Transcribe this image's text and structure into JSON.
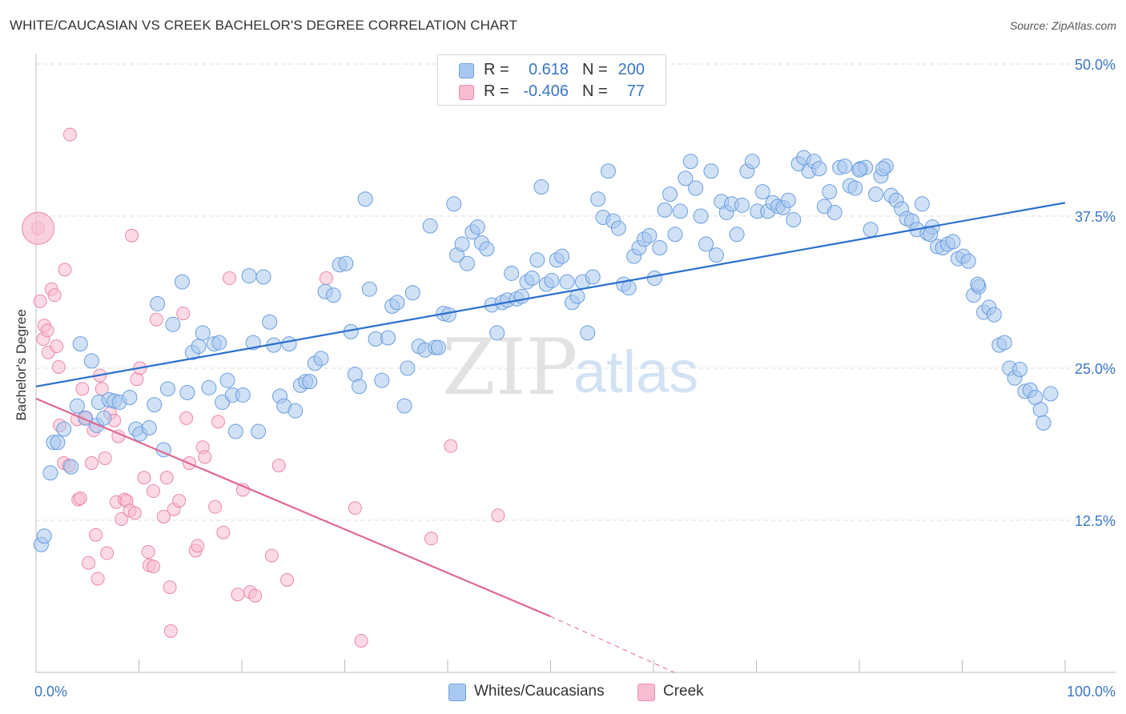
{
  "header": {
    "title": "WHITE/CAUCASIAN VS CREEK BACHELOR'S DEGREE CORRELATION CHART",
    "source": "Source: ZipAtlas.com"
  },
  "legend_top": {
    "rows": [
      {
        "r_label": "R =",
        "r_value": "0.618",
        "n_label": "N =",
        "n_value": "200",
        "color": "#a9c8ef",
        "border": "#6fa2e0"
      },
      {
        "r_label": "R =",
        "r_value": "-0.406",
        "n_label": "N =",
        "n_value": "77",
        "color": "#f7bcd0",
        "border": "#ec8fae"
      }
    ]
  },
  "legend_bottom": {
    "items": [
      {
        "label": "Whites/Caucasians",
        "color": "#a9c8ef",
        "border": "#6fa2e0"
      },
      {
        "label": "Creek",
        "color": "#f7bcd0",
        "border": "#ec8fae"
      }
    ]
  },
  "watermark": {
    "zip": "ZIP",
    "atlas": "atlas"
  },
  "colors": {
    "blue_fill": "#a9c8ef",
    "blue_stroke": "#6a9ede",
    "blue_line": "#2a6fcf",
    "pink_fill": "#f7bcd0",
    "pink_stroke": "#e889a9",
    "pink_line": "#e06892",
    "tick_label": "#3a76c4",
    "grid": "#dddddd"
  },
  "chart_data": {
    "type": "scatter",
    "title": "WHITE/CAUCASIAN VS CREEK BACHELOR'S DEGREE CORRELATION CHART",
    "xlabel": "",
    "ylabel": "Bachelor's Degree",
    "xlim": [
      0,
      100
    ],
    "ylim": [
      0,
      50
    ],
    "x_tick_labels": [
      "0.0%",
      "100.0%"
    ],
    "y_ticks": [
      12.5,
      25.0,
      37.5,
      50.0
    ],
    "y_tick_labels": [
      "12.5%",
      "25.0%",
      "37.5%",
      "50.0%"
    ],
    "grid": true,
    "legend_position": "top-center",
    "series": [
      {
        "name": "Whites/Caucasians",
        "color": "#a9c8ef",
        "r": 0.618,
        "n": 200,
        "trend": {
          "x": [
            0,
            100
          ],
          "y": [
            23.5,
            38.6
          ]
        },
        "points": [
          [
            0.5,
            10.5
          ],
          [
            0.8,
            11.2
          ],
          [
            1.4,
            16.4
          ],
          [
            1.7,
            18.9
          ],
          [
            2.1,
            18.9
          ],
          [
            2.7,
            20.0
          ],
          [
            3.4,
            16.9
          ],
          [
            4.0,
            21.9
          ],
          [
            4.3,
            27.0
          ],
          [
            4.8,
            20.9
          ],
          [
            5.4,
            25.6
          ],
          [
            5.9,
            20.3
          ],
          [
            6.1,
            22.2
          ],
          [
            6.6,
            20.9
          ],
          [
            7.1,
            22.4
          ],
          [
            7.6,
            22.3
          ],
          [
            8.1,
            22.2
          ],
          [
            9.1,
            22.6
          ],
          [
            9.7,
            20.0
          ],
          [
            10.1,
            19.6
          ],
          [
            11.0,
            20.1
          ],
          [
            11.5,
            22.0
          ],
          [
            11.8,
            30.3
          ],
          [
            12.4,
            18.3
          ],
          [
            12.8,
            23.3
          ],
          [
            13.3,
            28.6
          ],
          [
            14.2,
            32.1
          ],
          [
            14.7,
            23.0
          ],
          [
            15.2,
            26.3
          ],
          [
            15.8,
            26.8
          ],
          [
            16.2,
            27.9
          ],
          [
            16.8,
            23.4
          ],
          [
            17.3,
            27.0
          ],
          [
            17.8,
            27.1
          ],
          [
            18.1,
            22.2
          ],
          [
            18.6,
            24.0
          ],
          [
            19.1,
            22.8
          ],
          [
            19.4,
            19.8
          ],
          [
            20.1,
            22.8
          ],
          [
            20.7,
            32.6
          ],
          [
            21.1,
            27.1
          ],
          [
            21.6,
            19.8
          ],
          [
            22.1,
            32.5
          ],
          [
            22.7,
            28.8
          ],
          [
            23.1,
            26.9
          ],
          [
            23.7,
            22.7
          ],
          [
            24.1,
            21.9
          ],
          [
            24.6,
            27.0
          ],
          [
            25.2,
            21.5
          ],
          [
            25.7,
            23.6
          ],
          [
            26.2,
            23.9
          ],
          [
            26.6,
            23.9
          ],
          [
            27.1,
            25.4
          ],
          [
            27.7,
            25.8
          ],
          [
            28.1,
            31.3
          ],
          [
            28.9,
            31.0
          ],
          [
            29.5,
            33.5
          ],
          [
            30.1,
            33.6
          ],
          [
            30.6,
            28.0
          ],
          [
            31.0,
            24.5
          ],
          [
            31.4,
            23.5
          ],
          [
            32.0,
            38.9
          ],
          [
            32.4,
            31.5
          ],
          [
            33.0,
            27.4
          ],
          [
            33.6,
            24.0
          ],
          [
            34.2,
            27.5
          ],
          [
            34.6,
            30.1
          ],
          [
            35.1,
            30.4
          ],
          [
            35.8,
            21.9
          ],
          [
            36.1,
            25.0
          ],
          [
            36.6,
            31.2
          ],
          [
            37.2,
            26.8
          ],
          [
            37.8,
            26.5
          ],
          [
            38.3,
            36.7
          ],
          [
            38.8,
            26.7
          ],
          [
            39.1,
            26.7
          ],
          [
            39.6,
            29.5
          ],
          [
            40.1,
            29.4
          ],
          [
            40.6,
            38.5
          ],
          [
            40.9,
            34.3
          ],
          [
            41.4,
            35.2
          ],
          [
            41.9,
            33.6
          ],
          [
            42.4,
            36.2
          ],
          [
            42.9,
            36.6
          ],
          [
            43.3,
            35.3
          ],
          [
            43.8,
            34.8
          ],
          [
            44.3,
            30.2
          ],
          [
            44.8,
            27.9
          ],
          [
            45.3,
            30.4
          ],
          [
            45.8,
            30.6
          ],
          [
            46.2,
            32.8
          ],
          [
            46.7,
            30.7
          ],
          [
            47.2,
            30.9
          ],
          [
            47.7,
            32.1
          ],
          [
            48.2,
            32.4
          ],
          [
            48.7,
            33.9
          ],
          [
            49.1,
            39.9
          ],
          [
            49.6,
            31.9
          ],
          [
            50.1,
            32.2
          ],
          [
            50.6,
            33.9
          ],
          [
            51.1,
            34.2
          ],
          [
            51.6,
            32.1
          ],
          [
            52.1,
            30.4
          ],
          [
            52.6,
            30.9
          ],
          [
            53.1,
            32.1
          ],
          [
            53.6,
            27.9
          ],
          [
            54.1,
            32.5
          ],
          [
            54.6,
            38.9
          ],
          [
            55.1,
            37.4
          ],
          [
            55.6,
            41.2
          ],
          [
            56.1,
            37.1
          ],
          [
            56.6,
            36.5
          ],
          [
            57.1,
            31.9
          ],
          [
            57.6,
            31.6
          ],
          [
            58.1,
            34.2
          ],
          [
            58.6,
            34.9
          ],
          [
            59.1,
            35.6
          ],
          [
            59.6,
            35.9
          ],
          [
            60.1,
            32.4
          ],
          [
            60.6,
            34.9
          ],
          [
            61.1,
            38.0
          ],
          [
            61.6,
            39.3
          ],
          [
            62.1,
            36.0
          ],
          [
            62.6,
            37.9
          ],
          [
            63.1,
            40.6
          ],
          [
            63.6,
            42.0
          ],
          [
            64.1,
            39.8
          ],
          [
            64.6,
            37.5
          ],
          [
            65.1,
            35.2
          ],
          [
            65.6,
            41.2
          ],
          [
            66.1,
            34.3
          ],
          [
            66.6,
            38.7
          ],
          [
            67.1,
            37.8
          ],
          [
            67.6,
            38.5
          ],
          [
            68.1,
            36.0
          ],
          [
            68.6,
            38.4
          ],
          [
            69.1,
            41.2
          ],
          [
            69.6,
            42.0
          ],
          [
            70.1,
            37.9
          ],
          [
            70.6,
            39.5
          ],
          [
            71.1,
            37.9
          ],
          [
            71.6,
            38.6
          ],
          [
            72.1,
            38.3
          ],
          [
            72.6,
            38.2
          ],
          [
            73.1,
            38.8
          ],
          [
            73.6,
            37.2
          ],
          [
            74.1,
            41.8
          ],
          [
            74.6,
            42.3
          ],
          [
            75.1,
            41.2
          ],
          [
            75.6,
            42.0
          ],
          [
            76.1,
            41.4
          ],
          [
            76.6,
            38.3
          ],
          [
            77.1,
            39.5
          ],
          [
            77.6,
            37.8
          ],
          [
            78.1,
            41.5
          ],
          [
            78.6,
            41.6
          ],
          [
            79.1,
            40.0
          ],
          [
            79.6,
            39.8
          ],
          [
            80.1,
            41.4
          ],
          [
            80.6,
            41.5
          ],
          [
            81.1,
            36.4
          ],
          [
            81.6,
            39.3
          ],
          [
            82.1,
            40.8
          ],
          [
            82.6,
            41.6
          ],
          [
            83.1,
            39.2
          ],
          [
            83.6,
            38.8
          ],
          [
            84.1,
            38.1
          ],
          [
            84.6,
            37.3
          ],
          [
            85.1,
            37.1
          ],
          [
            85.6,
            36.4
          ],
          [
            86.1,
            38.5
          ],
          [
            86.6,
            36.1
          ],
          [
            87.1,
            36.6
          ],
          [
            87.6,
            35.0
          ],
          [
            88.1,
            34.9
          ],
          [
            88.6,
            35.2
          ],
          [
            89.1,
            35.4
          ],
          [
            89.6,
            34.0
          ],
          [
            90.1,
            34.2
          ],
          [
            90.6,
            33.8
          ],
          [
            91.1,
            31.0
          ],
          [
            91.6,
            31.7
          ],
          [
            92.1,
            29.6
          ],
          [
            92.6,
            30.0
          ],
          [
            93.1,
            29.4
          ],
          [
            93.6,
            26.9
          ],
          [
            94.1,
            27.1
          ],
          [
            94.6,
            25.0
          ],
          [
            95.1,
            24.2
          ],
          [
            95.6,
            24.9
          ],
          [
            96.1,
            23.1
          ],
          [
            96.6,
            23.2
          ],
          [
            97.1,
            22.6
          ],
          [
            97.6,
            21.6
          ],
          [
            97.9,
            20.5
          ],
          [
            98.6,
            22.9
          ],
          [
            91.5,
            31.9
          ],
          [
            86.9,
            36.0
          ],
          [
            82.3,
            41.4
          ],
          [
            80.0,
            41.3
          ]
        ]
      },
      {
        "name": "Creek",
        "color": "#f7bcd0",
        "r": -0.406,
        "n": 77,
        "trend": {
          "x": [
            0,
            50
          ],
          "y": [
            22.5,
            4.6
          ]
        },
        "trend_dashed": {
          "x": [
            50,
            62
          ],
          "y": [
            4.6,
            0.0
          ]
        },
        "points": [
          [
            0.4,
            30.5
          ],
          [
            0.7,
            27.4
          ],
          [
            0.8,
            28.5
          ],
          [
            1.1,
            28.1
          ],
          [
            1.2,
            26.3
          ],
          [
            1.5,
            31.5
          ],
          [
            1.8,
            31.0
          ],
          [
            2.0,
            26.8
          ],
          [
            2.2,
            25.1
          ],
          [
            2.3,
            20.3
          ],
          [
            2.7,
            17.2
          ],
          [
            2.8,
            33.1
          ],
          [
            3.2,
            17.0
          ],
          [
            3.3,
            44.2
          ],
          [
            4.0,
            20.8
          ],
          [
            4.1,
            14.2
          ],
          [
            4.3,
            14.3
          ],
          [
            4.5,
            23.3
          ],
          [
            4.8,
            20.9
          ],
          [
            5.1,
            9.0
          ],
          [
            5.4,
            17.2
          ],
          [
            5.6,
            19.9
          ],
          [
            5.8,
            11.3
          ],
          [
            6.0,
            7.7
          ],
          [
            6.2,
            24.4
          ],
          [
            6.4,
            23.3
          ],
          [
            6.7,
            17.6
          ],
          [
            6.9,
            9.8
          ],
          [
            7.2,
            21.3
          ],
          [
            7.6,
            20.7
          ],
          [
            7.8,
            14.0
          ],
          [
            8.0,
            19.4
          ],
          [
            8.3,
            12.6
          ],
          [
            8.6,
            14.2
          ],
          [
            8.8,
            14.1
          ],
          [
            9.1,
            13.3
          ],
          [
            9.3,
            35.9
          ],
          [
            9.6,
            13.1
          ],
          [
            9.8,
            24.1
          ],
          [
            10.1,
            25.0
          ],
          [
            10.5,
            16.0
          ],
          [
            10.9,
            9.9
          ],
          [
            11.0,
            8.8
          ],
          [
            11.4,
            14.9
          ],
          [
            11.7,
            29.0
          ],
          [
            12.4,
            12.8
          ],
          [
            12.7,
            16.0
          ],
          [
            13.0,
            7.0
          ],
          [
            13.4,
            13.4
          ],
          [
            13.9,
            14.1
          ],
          [
            14.3,
            29.5
          ],
          [
            14.6,
            20.9
          ],
          [
            14.9,
            17.2
          ],
          [
            15.5,
            10.0
          ],
          [
            15.7,
            10.4
          ],
          [
            16.2,
            18.5
          ],
          [
            16.4,
            17.7
          ],
          [
            17.4,
            13.6
          ],
          [
            17.7,
            20.6
          ],
          [
            18.2,
            11.5
          ],
          [
            18.8,
            32.4
          ],
          [
            19.6,
            6.4
          ],
          [
            20.1,
            15.0
          ],
          [
            20.8,
            6.6
          ],
          [
            21.3,
            6.3
          ],
          [
            22.9,
            9.6
          ],
          [
            23.6,
            17.0
          ],
          [
            24.4,
            7.6
          ],
          [
            28.2,
            32.4
          ],
          [
            31.0,
            13.5
          ],
          [
            31.6,
            2.6
          ],
          [
            38.4,
            11.0
          ],
          [
            40.3,
            18.6
          ],
          [
            44.9,
            12.9
          ],
          [
            0.2,
            36.5
          ],
          [
            13.1,
            3.4
          ],
          [
            11.4,
            8.7
          ]
        ],
        "large_point": [
          0.2,
          36.5
        ]
      }
    ]
  }
}
